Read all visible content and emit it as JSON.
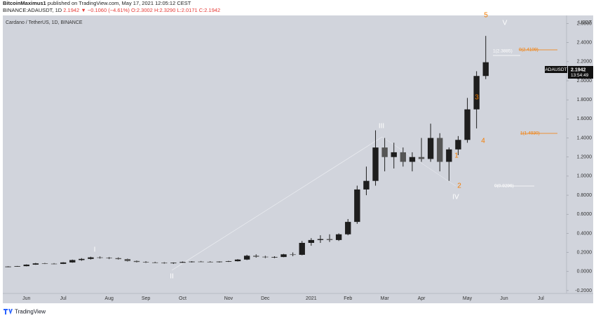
{
  "header": {
    "author": "BitcoinMaximus1",
    "published": "published on TradingView.com, May 17, 2021 12:05:12 CEST",
    "symbol": "BINANCE:ADAUSDT, 1D",
    "last": "2.1942",
    "change": "▼ −0.1060 (−4.61%)",
    "ohlc": [
      "O:2.3002",
      "H:2.3290",
      "L:2.0171",
      "C:2.1942"
    ]
  },
  "footer": {
    "brand": "TradingView"
  },
  "chart_data": {
    "type": "candlestick",
    "title": "Cardano / TetherUS, 1D, BINANCE",
    "y_unit": "USDT",
    "categories": [
      null,
      null,
      "Jun",
      null,
      null,
      null,
      "Jul",
      null,
      null,
      null,
      null,
      "Aug",
      null,
      null,
      null,
      "Sep",
      null,
      null,
      null,
      "Oct",
      null,
      null,
      null,
      null,
      "Nov",
      null,
      null,
      null,
      "Dec",
      null,
      null,
      null,
      null,
      "2021",
      null,
      null,
      null,
      "Feb",
      null,
      null,
      null,
      "Mar",
      null,
      null,
      null,
      "Apr",
      null,
      null,
      null,
      null,
      "May",
      null,
      null,
      null,
      "Jun",
      null,
      null,
      null,
      "Jul",
      null
    ],
    "open": [
      0.048,
      0.052,
      0.056,
      0.072,
      0.085,
      0.082,
      0.08,
      0.095,
      0.12,
      0.132,
      0.148,
      0.145,
      0.14,
      0.13,
      0.11,
      0.1,
      0.095,
      0.092,
      0.086,
      0.092,
      0.1,
      0.104,
      0.102,
      0.1,
      0.104,
      0.108,
      0.125,
      0.165,
      0.155,
      0.15,
      0.152,
      0.18,
      0.175,
      0.3,
      0.33,
      0.34,
      0.33,
      0.39,
      0.52,
      0.86,
      0.95,
      1.3,
      1.2,
      1.25,
      1.15,
      1.2,
      1.18,
      1.4,
      1.15,
      1.28,
      1.38,
      1.7,
      2.05,
      null,
      null,
      null,
      null,
      null,
      null,
      null
    ],
    "high": [
      0.055,
      0.058,
      0.075,
      0.09,
      0.09,
      0.088,
      0.098,
      0.125,
      0.14,
      0.155,
      0.158,
      0.152,
      0.148,
      0.135,
      0.115,
      0.108,
      0.102,
      0.098,
      0.095,
      0.105,
      0.108,
      0.11,
      0.108,
      0.106,
      0.112,
      0.13,
      0.175,
      0.18,
      0.165,
      0.16,
      0.185,
      0.2,
      0.32,
      0.35,
      0.38,
      0.39,
      0.4,
      0.55,
      0.9,
      1.1,
      1.48,
      1.4,
      1.35,
      1.3,
      1.25,
      1.4,
      1.55,
      1.45,
      1.3,
      1.42,
      1.82,
      2.1,
      2.47,
      null,
      null,
      null,
      null,
      null,
      null,
      null
    ],
    "low": [
      0.045,
      0.05,
      0.054,
      0.07,
      0.078,
      0.075,
      0.078,
      0.092,
      0.112,
      0.125,
      0.135,
      0.13,
      0.125,
      0.105,
      0.095,
      0.09,
      0.088,
      0.082,
      0.08,
      0.09,
      0.095,
      0.098,
      0.096,
      0.094,
      0.1,
      0.105,
      0.12,
      0.145,
      0.14,
      0.14,
      0.15,
      0.16,
      0.17,
      0.27,
      0.3,
      0.31,
      0.32,
      0.38,
      0.5,
      0.8,
      0.9,
      1.05,
      1.08,
      1.1,
      1.05,
      1.15,
      1.15,
      1.05,
      0.95,
      1.22,
      1.35,
      1.5,
      2.017,
      null,
      null,
      null,
      null,
      null,
      null,
      null
    ],
    "close": [
      0.052,
      0.056,
      0.072,
      0.085,
      0.082,
      0.08,
      0.095,
      0.12,
      0.132,
      0.148,
      0.145,
      0.14,
      0.13,
      0.11,
      0.1,
      0.095,
      0.092,
      0.086,
      0.092,
      0.1,
      0.104,
      0.102,
      0.1,
      0.104,
      0.108,
      0.125,
      0.165,
      0.155,
      0.15,
      0.152,
      0.18,
      0.175,
      0.3,
      0.33,
      0.34,
      0.33,
      0.39,
      0.52,
      0.86,
      0.95,
      1.3,
      1.2,
      1.25,
      1.15,
      1.2,
      1.18,
      1.4,
      1.15,
      1.28,
      1.38,
      1.7,
      2.05,
      2.194,
      null,
      null,
      null,
      null,
      null,
      null,
      null
    ],
    "color": "#1e1e1e",
    "ylim": [
      -0.23,
      2.67
    ],
    "yticks": [
      {
        "value": -0.2,
        "label": "-0.2000"
      },
      {
        "value": 0,
        "label": "0.0000"
      },
      {
        "value": 0.2,
        "label": "0.2000"
      },
      {
        "value": 0.4,
        "label": "0.4000"
      },
      {
        "value": 0.6,
        "label": "0.6000"
      },
      {
        "value": 0.8,
        "label": "0.8000"
      },
      {
        "value": 1,
        "label": "1.0000"
      },
      {
        "value": 1.2,
        "label": "1.2000"
      },
      {
        "value": 1.4,
        "label": "1.4000"
      },
      {
        "value": 1.6,
        "label": "1.6000"
      },
      {
        "value": 1.8,
        "label": "1.8000"
      },
      {
        "value": 2,
        "label": "2.0000"
      },
      {
        "value": 2.2,
        "label": "2.2000"
      },
      {
        "value": 2.4,
        "label": "2.4000"
      },
      {
        "value": 2.6,
        "label": "2.6000"
      }
    ],
    "grid": false,
    "annotations": [
      "5",
      "3",
      "1",
      "4",
      "2",
      "V",
      "III",
      "IV",
      "I",
      "II",
      "0(2.4109)",
      "1(2.3885)",
      "1(1.4930)",
      "0(0.9296)"
    ],
    "price_tag": {
      "symbol": "ADAUSDT",
      "last": "2.1942",
      "countdown": "13:54:49"
    }
  }
}
